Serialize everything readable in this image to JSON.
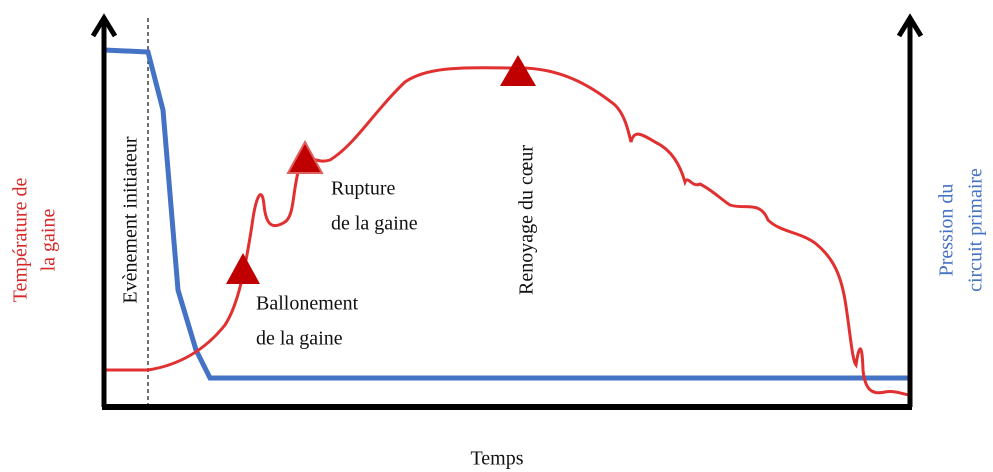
{
  "axes": {
    "y_left": [
      "Température de",
      "la gaine"
    ],
    "y_right": [
      "Pression du",
      "circuit primaire"
    ],
    "x": "Temps"
  },
  "annotations": {
    "event": "Evènement initiateur",
    "rupture": [
      "Rupture",
      "de la gaine"
    ],
    "ballooning": [
      "Ballonement",
      "de la gaine"
    ],
    "reflood": "Renoyage du cœur"
  }
}
